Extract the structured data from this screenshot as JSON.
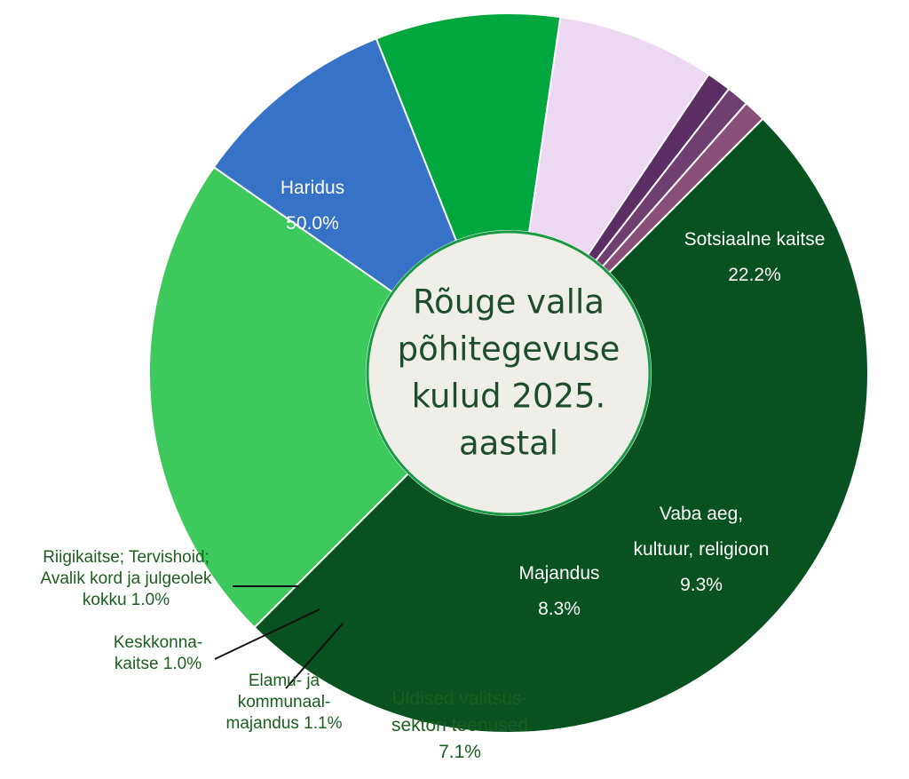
{
  "chart_data": {
    "type": "pie",
    "style": "donut",
    "title": [
      "Rõuge valla",
      "põhitegevuse",
      "kulud 2025.",
      "aastal"
    ],
    "slices": [
      {
        "name": "Haridus",
        "lines": [
          "Haridus"
        ],
        "pct_label": "50.0%",
        "value": 50.0,
        "color": "#075220",
        "text_color": "#ffffff"
      },
      {
        "name": "Sotsiaalne kaitse",
        "lines": [
          "Sotsiaalne kaitse"
        ],
        "pct_label": "22.2%",
        "value": 22.2,
        "color": "#3dc95c",
        "text_color": "#ffffff"
      },
      {
        "name": "Vaba aeg, kultuur, religioon",
        "lines": [
          "Vaba aeg,",
          "kultuur, religioon"
        ],
        "pct_label": "9.3%",
        "value": 9.3,
        "color": "#3673c6",
        "text_color": "#ffffff"
      },
      {
        "name": "Majandus",
        "lines": [
          "Majandus"
        ],
        "pct_label": "8.3%",
        "value": 8.3,
        "color": "#00a63e",
        "text_color": "#ffffff"
      },
      {
        "name": "Üldised valitsussektori teenused",
        "lines": [
          "Üldised valitsus-",
          "sektori teenused"
        ],
        "pct_label": "7.1%",
        "value": 7.1,
        "color": "#ecd8f0",
        "text_color": "#1b5e20"
      },
      {
        "name": "Elamu- ja kommunaalmajandus",
        "lines": [
          "Elamu- ja",
          "kommunaal-",
          "majandus 1.1%"
        ],
        "pct_label": "",
        "value": 1.1,
        "color": "#5b2e66",
        "text_color": "#1b5e20"
      },
      {
        "name": "Keskkonnakaitse",
        "lines": [
          "Keskkonna-",
          "kaitse 1.0%"
        ],
        "pct_label": "",
        "value": 1.0,
        "color": "#6f3f6f",
        "text_color": "#1b5e20"
      },
      {
        "name": "Riigikaitse; Tervishoid; Avalik kord ja julgeolek kokku",
        "lines": [
          "Riigikaitse; Tervishoid;",
          "Avalik kord ja julgeolek",
          "kokku 1.0%"
        ],
        "pct_label": "",
        "value": 1.0,
        "color": "#8a4f78",
        "text_color": "#1b5e20"
      }
    ],
    "center_fill": "#efeee8",
    "center_stroke": "#1a9a44"
  }
}
